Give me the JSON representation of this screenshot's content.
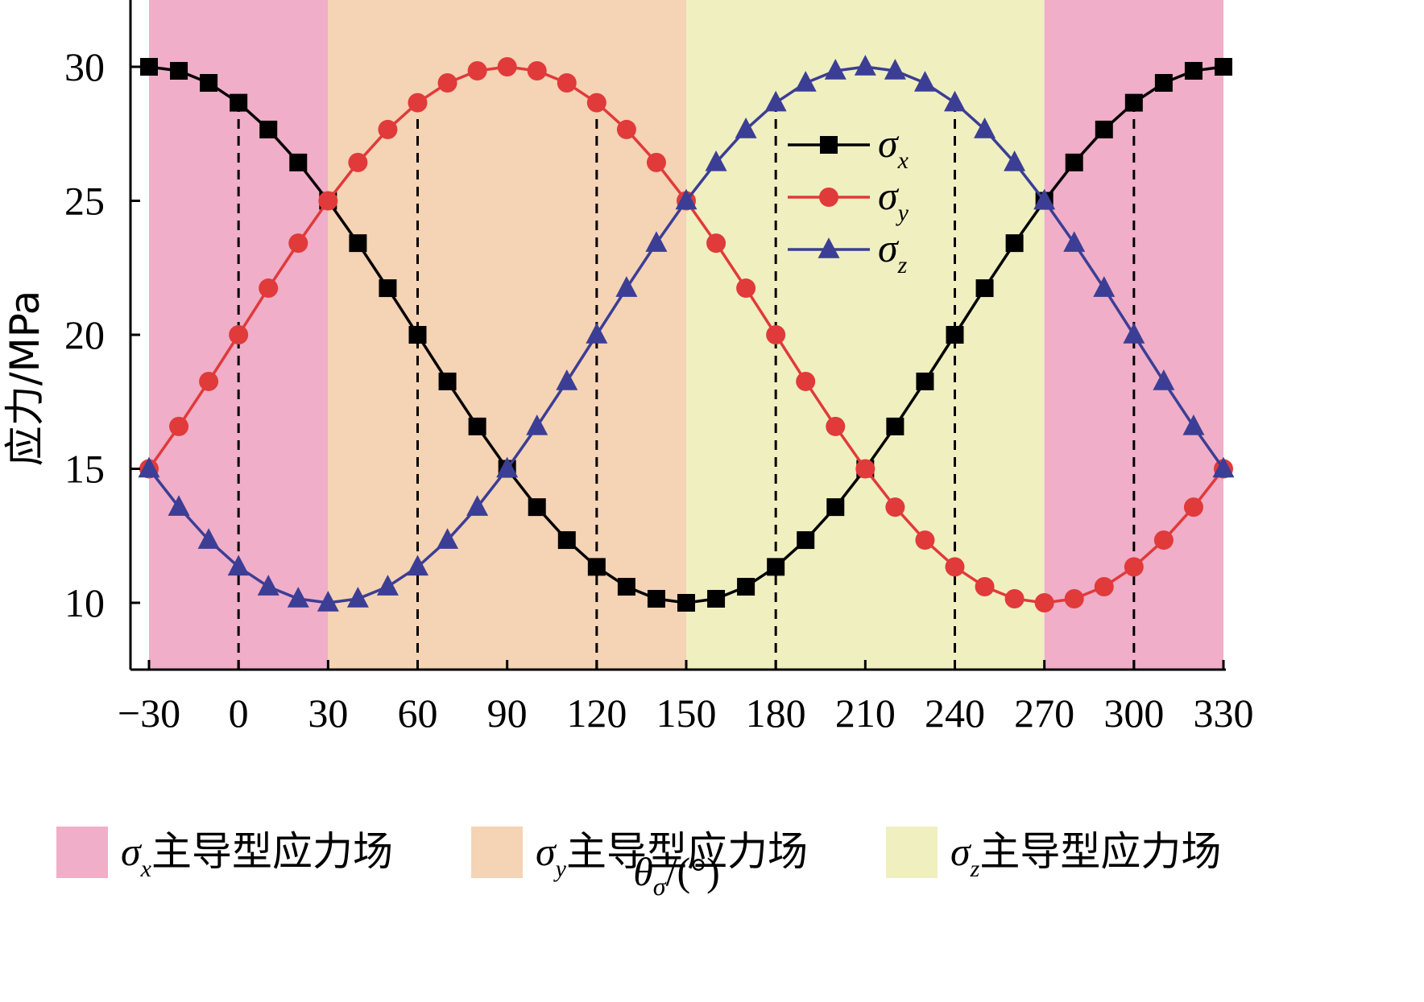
{
  "chart_data": {
    "type": "line",
    "xlabel": "θσ/(°)",
    "xlabel_symbol": "θ",
    "xlabel_sub": "σ",
    "xlabel_unit": "/(°)",
    "ylabel": "应力/MPa",
    "xlim": [
      -30,
      330
    ],
    "ylim": [
      7.5,
      32.5
    ],
    "x_ticks": [
      -30,
      0,
      30,
      60,
      90,
      120,
      150,
      180,
      210,
      240,
      270,
      300,
      330
    ],
    "x_tick_labels": [
      "−30",
      "0",
      "30",
      "60",
      "90",
      "120",
      "150",
      "180",
      "210",
      "240",
      "270",
      "300",
      "330"
    ],
    "y_ticks": [
      10,
      15,
      20,
      25,
      30
    ],
    "y_tick_labels": [
      "10",
      "15",
      "20",
      "25",
      "30"
    ],
    "dashed_vlines": [
      0,
      60,
      120,
      180,
      240,
      300
    ],
    "regions": [
      {
        "from": -30,
        "to": 30,
        "field": "x",
        "color": "#F0AEC8"
      },
      {
        "from": 30,
        "to": 150,
        "field": "y",
        "color": "#F5D3B5"
      },
      {
        "from": 150,
        "to": 270,
        "field": "z",
        "color": "#F0EFC0"
      },
      {
        "from": 270,
        "to": 330,
        "field": "x",
        "color": "#F0AEC8"
      }
    ],
    "x": [
      -30,
      -20,
      -10,
      0,
      10,
      20,
      30,
      40,
      50,
      60,
      70,
      80,
      90,
      100,
      110,
      120,
      130,
      140,
      150,
      160,
      170,
      180,
      190,
      200,
      210,
      220,
      230,
      240,
      250,
      260,
      270,
      280,
      290,
      300,
      310,
      320,
      330
    ],
    "series": [
      {
        "name": "σx",
        "symbol": "σ",
        "sub": "x",
        "color": "#000000",
        "marker": "square",
        "values": [
          30.0,
          29.85,
          29.4,
          28.66,
          27.66,
          26.43,
          25.0,
          23.42,
          21.74,
          20.0,
          18.26,
          16.58,
          15.0,
          13.57,
          12.34,
          11.34,
          10.6,
          10.15,
          10.0,
          10.15,
          10.6,
          11.34,
          12.34,
          13.57,
          15.0,
          16.58,
          18.26,
          20.0,
          21.74,
          23.42,
          25.0,
          26.43,
          27.66,
          28.66,
          29.4,
          29.85,
          30.0
        ]
      },
      {
        "name": "σy",
        "symbol": "σ",
        "sub": "y",
        "color": "#E03A3A",
        "marker": "circle",
        "values": [
          15.0,
          16.58,
          18.26,
          20.0,
          21.74,
          23.42,
          25.0,
          26.43,
          27.66,
          28.66,
          29.4,
          29.85,
          30.0,
          29.85,
          29.4,
          28.66,
          27.66,
          26.43,
          25.0,
          23.42,
          21.74,
          20.0,
          18.26,
          16.58,
          15.0,
          13.57,
          12.34,
          11.34,
          10.6,
          10.15,
          10.0,
          10.15,
          10.6,
          11.34,
          12.34,
          13.57,
          15.0
        ]
      },
      {
        "name": "σz",
        "symbol": "σ",
        "sub": "z",
        "color": "#3B3E94",
        "marker": "triangle",
        "values": [
          15.0,
          13.57,
          12.34,
          11.34,
          10.6,
          10.15,
          10.0,
          10.15,
          10.6,
          11.34,
          12.34,
          13.57,
          15.0,
          16.58,
          18.26,
          20.0,
          21.74,
          23.42,
          25.0,
          26.43,
          27.66,
          28.66,
          29.4,
          29.85,
          30.0,
          29.85,
          29.4,
          28.66,
          27.66,
          26.43,
          25.0,
          23.42,
          21.74,
          20.0,
          18.26,
          16.58,
          15.0
        ]
      }
    ],
    "legend_placement": "upper-center-right",
    "region_legend": [
      {
        "symbol": "σ",
        "sub": "x",
        "text": "主导型应力场",
        "color": "#F0AEC8"
      },
      {
        "symbol": "σ",
        "sub": "y",
        "text": "主导型应力场",
        "color": "#F5D3B5"
      },
      {
        "symbol": "σ",
        "sub": "z",
        "text": "主导型应力场",
        "color": "#F0EFC0"
      }
    ]
  }
}
